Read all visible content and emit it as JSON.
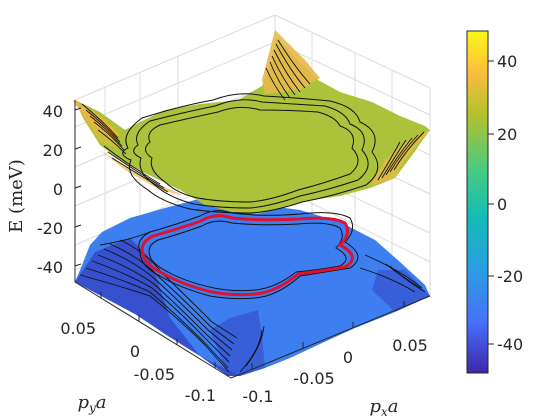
{
  "chart_data": {
    "type": "surface",
    "title": "",
    "xlabel": "p_x a",
    "ylabel": "p_y a",
    "zlabel": "E (meV)",
    "x_ticks": [
      "-0.1",
      "-0.05",
      "0",
      "0.05"
    ],
    "y_ticks": [
      "-0.1",
      "-0.05",
      "0",
      "0.05"
    ],
    "z_ticks": [
      "-40",
      "-20",
      "0",
      "20",
      "40"
    ],
    "xlim": [
      -0.1,
      0.1
    ],
    "ylim": [
      -0.1,
      0.1
    ],
    "zlim": [
      -50,
      50
    ],
    "grid": true,
    "series": [
      {
        "band": "upper",
        "flat_region_energy": 25,
        "max_energy": 50,
        "contour_color": "#000000"
      },
      {
        "band": "lower",
        "flat_region_energy": -25,
        "min_energy": -50,
        "contour_color": "#000000"
      }
    ],
    "highlighted_contour": {
      "color": "#e0102f",
      "band": "lower"
    },
    "colorbar": {
      "ticks": [
        "40",
        "20",
        "0",
        "-20",
        "-40"
      ],
      "range": [
        -50,
        50
      ],
      "colormap": "parula",
      "colors": [
        "#3e26a8",
        "#4771f9",
        "#2c9de2",
        "#13bbb8",
        "#4bcb7f",
        "#b1c12e",
        "#fcbd3d",
        "#f9fa14"
      ]
    },
    "colors": {
      "upper_surface": "#acc23a",
      "lower_surface": "#3d7ff0",
      "highlight": "#e0102f"
    }
  }
}
